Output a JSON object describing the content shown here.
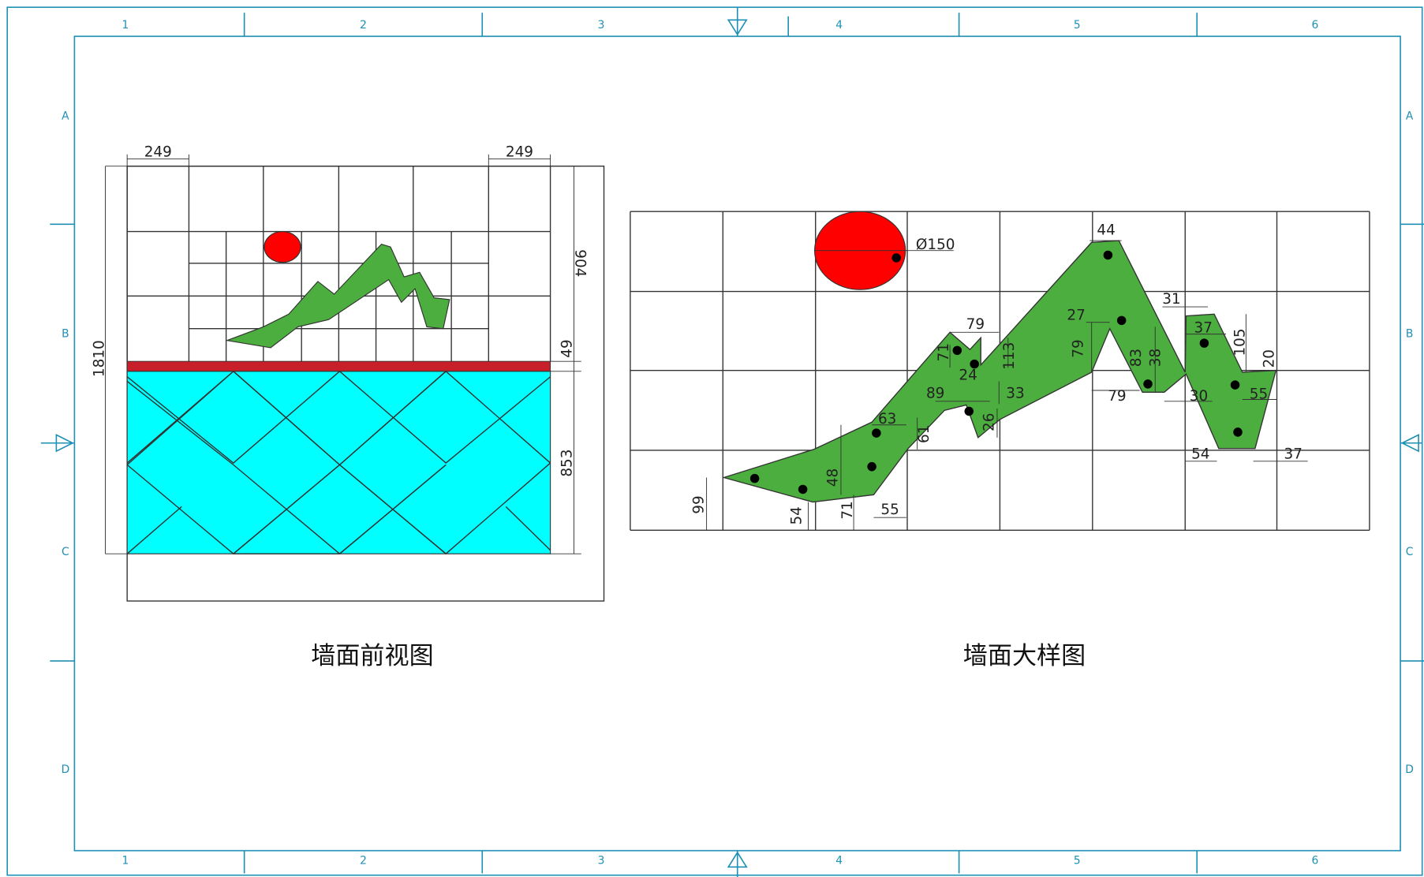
{
  "frame": {
    "columns": [
      "1",
      "2",
      "3",
      "4",
      "5",
      "6"
    ],
    "rows": [
      "A",
      "B",
      "C",
      "D"
    ]
  },
  "front_view": {
    "title": "墙面前视图",
    "dimensions": [
      "249",
      "249",
      "1810",
      "904",
      "49",
      "853"
    ]
  },
  "detail_view": {
    "title": "墙面大样图",
    "dimensions": [
      "Ø150",
      "44",
      "79",
      "71",
      "113",
      "24",
      "27",
      "79",
      "31",
      "37",
      "105",
      "20",
      "83",
      "38",
      "89",
      "33",
      "79",
      "30",
      "55",
      "63",
      "61",
      "26",
      "48",
      "54",
      "37",
      "99",
      "54",
      "71",
      "55"
    ]
  }
}
